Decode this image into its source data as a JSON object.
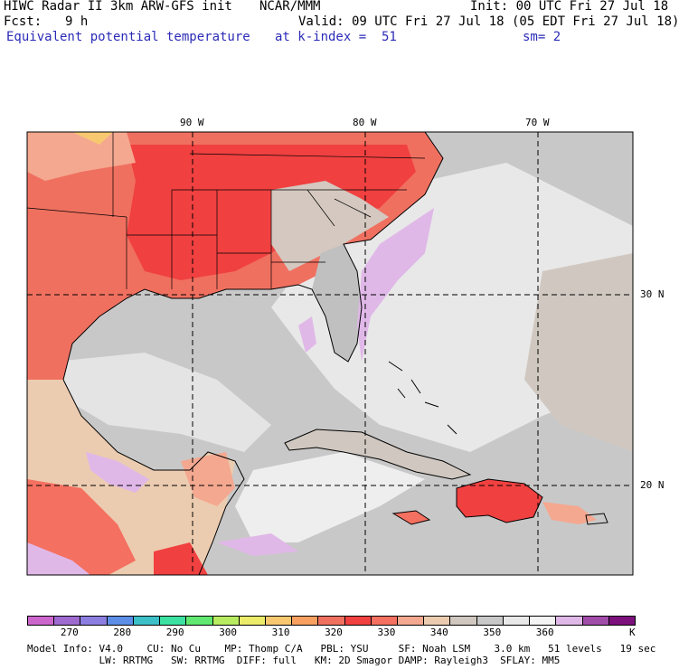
{
  "header": {
    "title": "HIWC Radar II 3km ARW-GFS init",
    "org": "NCAR/MMM",
    "init": "Init: 00 UTC Fri 27 Jul 18",
    "fcst_label": "Fcst:",
    "fcst_value": "9 h",
    "valid": "Valid: 09 UTC Fri 27 Jul 18 (05 EDT Fri 27 Jul 18)",
    "field": "Equivalent potential temperature",
    "level": "at k-index =  51",
    "smoothing": "sm= 2"
  },
  "map": {
    "lon_labels": [
      "90 W",
      "80 W",
      "70 W"
    ],
    "lat_labels": [
      "30 N",
      "20 N"
    ]
  },
  "colorbar": {
    "colors": [
      "#cc66cc",
      "#9e6ad0",
      "#8c7ee0",
      "#5c8ee8",
      "#3cc0c8",
      "#3ce0a0",
      "#60e870",
      "#b8ec60",
      "#ecec6a",
      "#f8c870",
      "#f8a060",
      "#f07060",
      "#f04040",
      "#f47060",
      "#f4a890",
      "#ecccb0",
      "#d0c8c0",
      "#c8c8c8",
      "#e8e8e8",
      "#f4f4f4",
      "#e0b8e8",
      "#a04ca8",
      "#7c107c"
    ],
    "ticks": [
      "270",
      "280",
      "290",
      "300",
      "310",
      "320",
      "330",
      "340",
      "350",
      "360"
    ],
    "unit": "K"
  },
  "footer": {
    "line1": "Model Info: V4.0    CU: No Cu    MP: Thomp C/A   PBL: YSU     SF: Noah LSM    3.0 km   51 levels   19 sec",
    "line2": "            LW: RRTMG   SW: RRTMG  DIFF: full   KM: 2D Smagor DAMP: Rayleigh3  SFLAY: MM5"
  }
}
